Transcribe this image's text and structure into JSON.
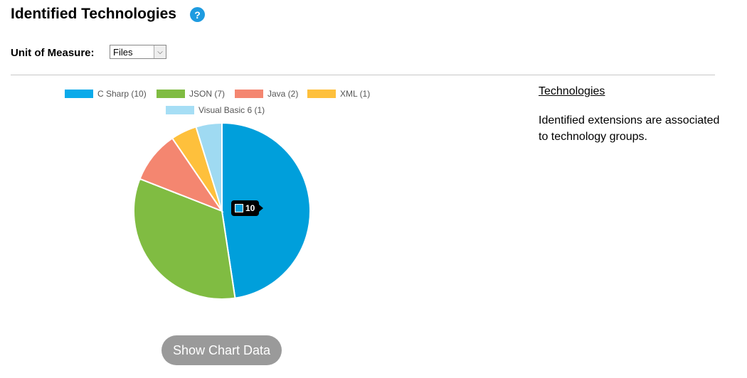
{
  "header": {
    "title": "Identified Technologies",
    "help_icon": "?"
  },
  "unit_of_measure": {
    "label": "Unit of Measure:",
    "selected": "Files"
  },
  "chart_data": {
    "type": "pie",
    "categories": [
      "C Sharp",
      "JSON",
      "Java",
      "XML",
      "Visual Basic 6"
    ],
    "values": [
      10,
      7,
      2,
      1,
      1
    ],
    "legend_labels": [
      "C Sharp (10)",
      "JSON (7)",
      "Java (2)",
      "XML (1)",
      "Visual Basic 6 (1)"
    ],
    "colors": [
      "#009fdb",
      "#80bc42",
      "#f48670",
      "#fec03c",
      "#9fdaf2"
    ],
    "legend_swatch_colors": [
      "#0aaaea",
      "#80bc42",
      "#f48670",
      "#fec03c",
      "#a6def5"
    ],
    "legend": "top",
    "tooltip": {
      "series": "C Sharp",
      "value": "10"
    }
  },
  "buttons": {
    "show_chart_data": "Show Chart Data"
  },
  "sidebar": {
    "heading": "Technologies",
    "description": "Identified extensions are associated to technology groups."
  }
}
